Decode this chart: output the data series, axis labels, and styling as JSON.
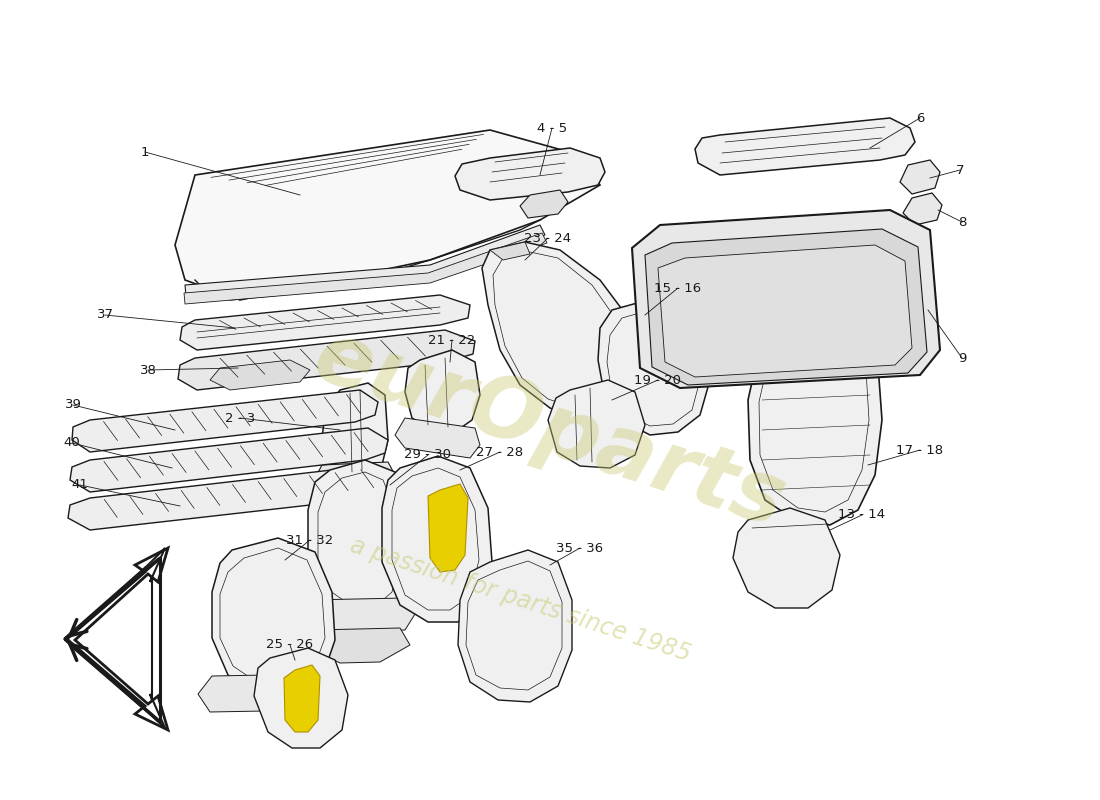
{
  "background_color": "#ffffff",
  "line_color": "#1a1a1a",
  "watermark_text1": "eurOparts",
  "watermark_text2": "a passion for parts since 1985",
  "watermark_color": "#c8c870",
  "fig_width": 11.0,
  "fig_height": 8.0,
  "dpi": 100
}
